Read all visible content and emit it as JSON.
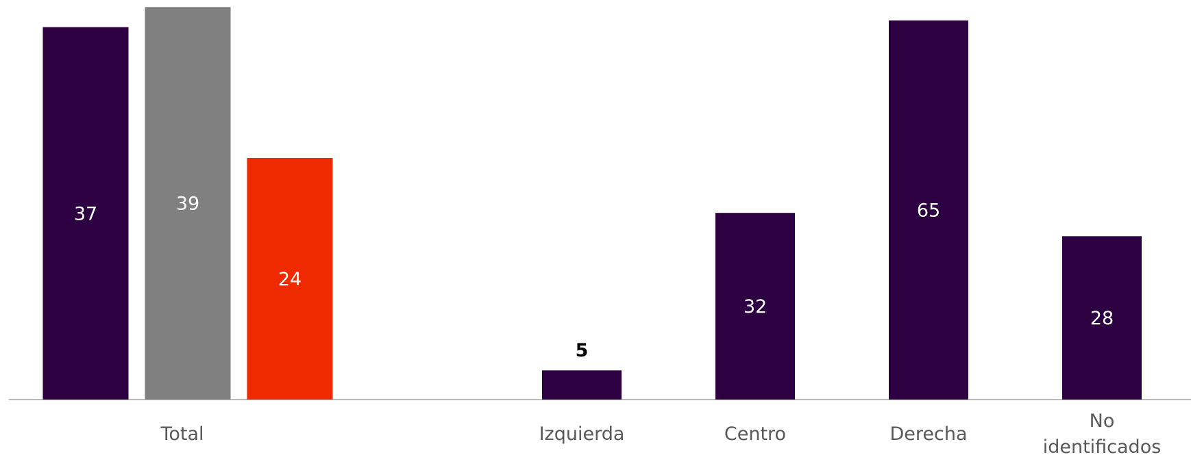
{
  "chart_data": [
    {
      "type": "bar",
      "categories": [
        "Total"
      ],
      "series": [
        {
          "color": "#2d0041",
          "values": [
            37
          ]
        },
        {
          "color": "#808080",
          "values": [
            39
          ]
        },
        {
          "color": "#f02a00",
          "values": [
            24
          ]
        }
      ],
      "ylim": [
        0,
        39.7
      ]
    },
    {
      "type": "bar",
      "categories": [
        "Izquierda",
        "Centro",
        "Derecha",
        "No\nidentificados"
      ],
      "series": [
        {
          "color": "#2d0041",
          "values": [
            5,
            32,
            65,
            28
          ]
        }
      ],
      "ylim": [
        0,
        68.5
      ]
    }
  ]
}
